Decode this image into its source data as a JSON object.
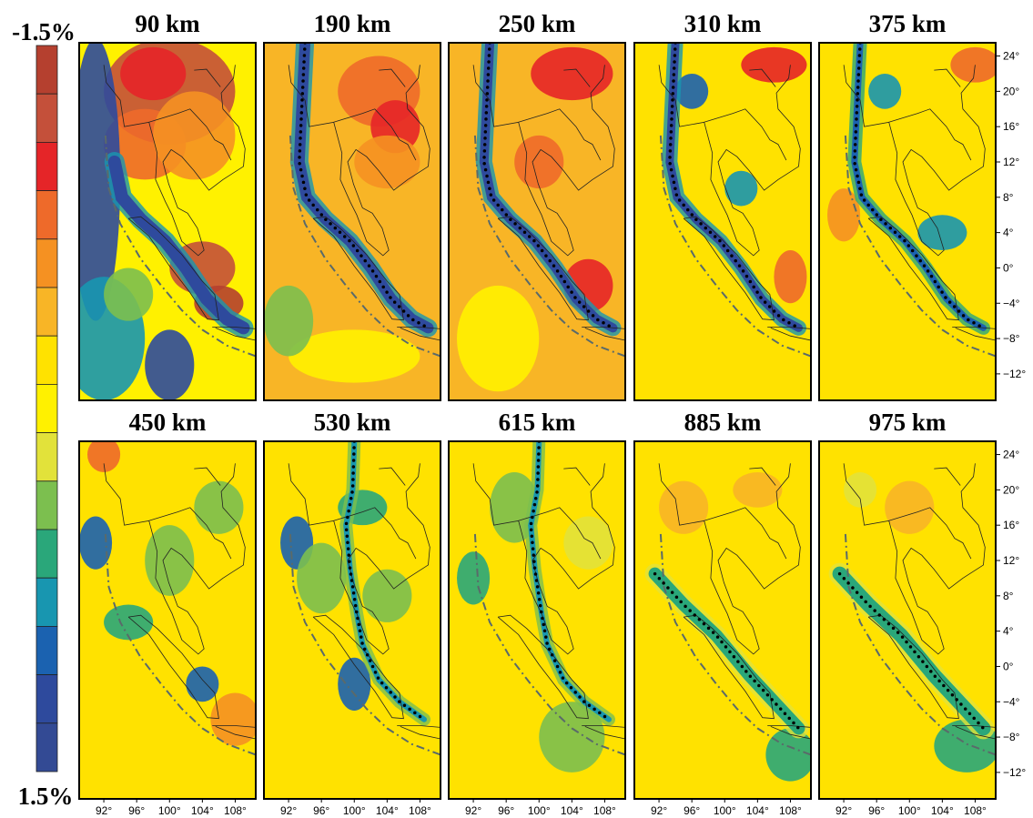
{
  "colorbar": {
    "top_label": "-1.5%",
    "bottom_label": "1.5%",
    "colors": [
      "#b5402f",
      "#c4503a",
      "#e52528",
      "#ee6a2a",
      "#f59122",
      "#f8b526",
      "#ffe200",
      "#fff100",
      "#e2e23a",
      "#7cbf4f",
      "#2aa77a",
      "#1896b0",
      "#1b62b0",
      "#2e4a9d",
      "#334a94"
    ]
  },
  "panels": [
    {
      "title": "90 km"
    },
    {
      "title": "190 km"
    },
    {
      "title": "250 km"
    },
    {
      "title": "310 km"
    },
    {
      "title": "375 km"
    },
    {
      "title": "450 km"
    },
    {
      "title": "530 km"
    },
    {
      "title": "615 km"
    },
    {
      "title": "885 km"
    },
    {
      "title": "975 km"
    }
  ],
  "lat_ticks": [
    "24°",
    "20°",
    "16°",
    "12°",
    "8°",
    "4°",
    "0°",
    "−4°",
    "−8°",
    "−12°"
  ],
  "lon_ticks": [
    "92°",
    "96°",
    "100°",
    "104°",
    "108°"
  ]
}
